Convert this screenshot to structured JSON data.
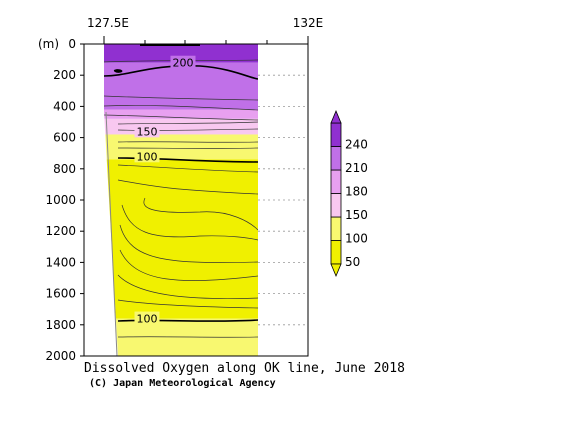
{
  "chart_data": {
    "type": "heatmap",
    "title": "Dissolved Oxygen along OK line, June 2018",
    "credit": "(C) Japan Meteorological Agency",
    "x_ticks": [
      "127.5E",
      "132E"
    ],
    "y_unit": "(m)",
    "y_ticks": [
      0,
      200,
      400,
      600,
      800,
      1000,
      1200,
      1400,
      1600,
      1800,
      2000
    ],
    "ylim": [
      2000,
      0
    ],
    "colorbar": {
      "levels": [
        50,
        100,
        150,
        180,
        210,
        240
      ],
      "labels": [
        "50",
        "100",
        "150",
        "180",
        "210",
        "240"
      ],
      "colors": [
        "#f0f000",
        "#f8f870",
        "#f8c8f0",
        "#e8a0f0",
        "#c070e8",
        "#9030d0"
      ],
      "under_color": "#f0f000",
      "over_color": "#9030d0"
    },
    "contour_labels": [
      {
        "text": "200",
        "depth": 120
      },
      {
        "text": "150",
        "depth": 560
      },
      {
        "text": "100",
        "depth": 720
      },
      {
        "text": "100",
        "depth": 1760
      }
    ],
    "bands": [
      {
        "from_depth": 0,
        "to_depth": 120,
        "color": "#9030d0"
      },
      {
        "from_depth": 120,
        "to_depth": 420,
        "color": "#c070e8"
      },
      {
        "from_depth": 420,
        "to_depth": 480,
        "color": "#e8a0f0"
      },
      {
        "from_depth": 480,
        "to_depth": 580,
        "color": "#f8c8f0"
      },
      {
        "from_depth": 580,
        "to_depth": 740,
        "color": "#f8f870"
      },
      {
        "from_depth": 740,
        "to_depth": 1760,
        "color": "#f0f000"
      },
      {
        "from_depth": 1760,
        "to_depth": 2000,
        "color": "#f8f870"
      }
    ]
  }
}
